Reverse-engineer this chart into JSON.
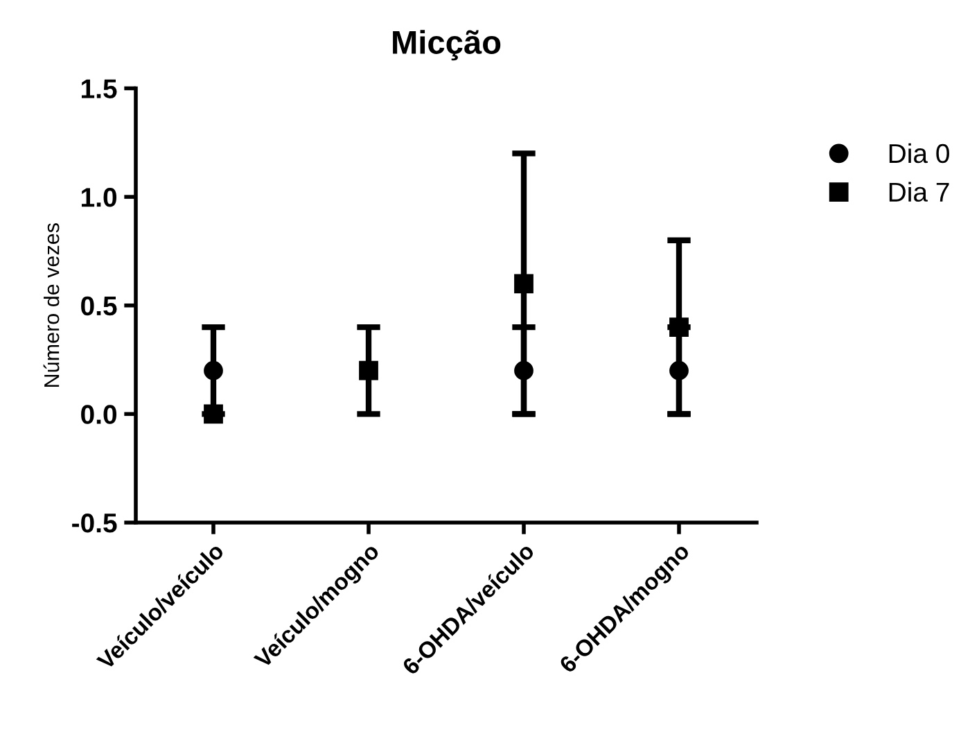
{
  "chart_data": {
    "type": "scatter",
    "title": "Micção",
    "ylabel": "Número de vezes",
    "categories": [
      "Veículo/veículo",
      "Veículo/mogno",
      "6-OHDA/veículo",
      "6-OHDA/mogno"
    ],
    "series": [
      {
        "name": "Dia 0",
        "color": "#000000",
        "marker": "circle",
        "values": [
          0.2,
          null,
          0.2,
          0.2
        ],
        "errors": [
          0.2,
          null,
          0.2,
          0.2
        ]
      },
      {
        "name": "Dia 7",
        "color": "#000000",
        "marker": "square",
        "values": [
          0,
          0.2,
          0.6,
          0.4
        ],
        "errors": [
          null,
          0.2,
          0.6,
          0.4
        ]
      }
    ],
    "ylim": [
      -0.5,
      1.5
    ],
    "yticks": [
      {
        "value": -0.5,
        "label": "-0.5"
      },
      {
        "value": 0,
        "label": "0.0"
      },
      0.5,
      {
        "value": 1,
        "label": "1.0"
      },
      1.5
    ],
    "grid": false,
    "legend": "right"
  }
}
